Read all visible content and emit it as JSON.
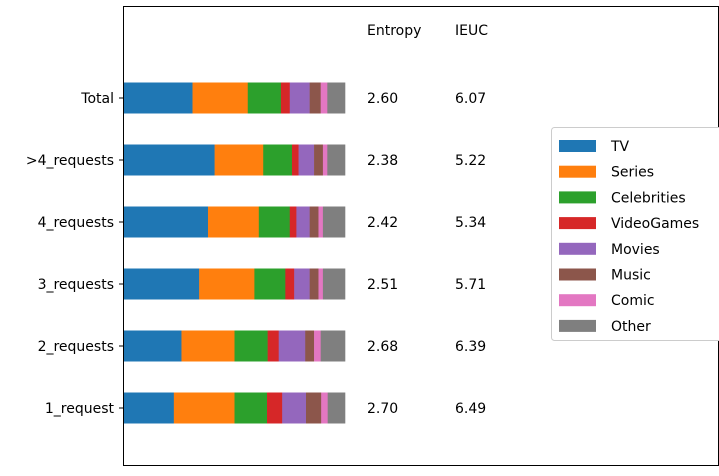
{
  "chart_data": {
    "type": "bar",
    "orientation": "horizontal",
    "stacked": true,
    "normalized": true,
    "categories": [
      "Total",
      ">4_requests",
      "4_requests",
      "3_requests",
      "2_requests",
      "1_request"
    ],
    "series": [
      {
        "name": "TV",
        "color": "#1f77b4",
        "values": [
          0.31,
          0.41,
          0.38,
          0.34,
          0.26,
          0.23
        ]
      },
      {
        "name": "Series",
        "color": "#ff7f0e",
        "values": [
          0.25,
          0.22,
          0.23,
          0.25,
          0.24,
          0.28
        ]
      },
      {
        "name": "Celebrities",
        "color": "#2ca02c",
        "values": [
          0.15,
          0.13,
          0.14,
          0.14,
          0.15,
          0.15
        ]
      },
      {
        "name": "VideoGames",
        "color": "#d62728",
        "values": [
          0.04,
          0.03,
          0.03,
          0.04,
          0.05,
          0.07
        ]
      },
      {
        "name": "Movies",
        "color": "#9467bd",
        "values": [
          0.09,
          0.07,
          0.06,
          0.07,
          0.12,
          0.11
        ]
      },
      {
        "name": "Music",
        "color": "#8c564b",
        "values": [
          0.05,
          0.04,
          0.04,
          0.04,
          0.04,
          0.07
        ]
      },
      {
        "name": "Comic",
        "color": "#e377c2",
        "values": [
          0.03,
          0.02,
          0.02,
          0.02,
          0.03,
          0.03
        ]
      },
      {
        "name": "Other",
        "color": "#7f7f7f",
        "values": [
          0.08,
          0.08,
          0.1,
          0.1,
          0.11,
          0.08
        ]
      }
    ],
    "table": {
      "headers": [
        "Entropy",
        "IEUC"
      ],
      "rows": [
        [
          "2.60",
          "6.07"
        ],
        [
          "2.38",
          "5.22"
        ],
        [
          "2.42",
          "5.34"
        ],
        [
          "2.51",
          "5.71"
        ],
        [
          "2.68",
          "6.39"
        ],
        [
          "2.70",
          "6.49"
        ]
      ]
    },
    "legend_placement": "right",
    "xlim": [
      0,
      1
    ],
    "grid": false
  }
}
